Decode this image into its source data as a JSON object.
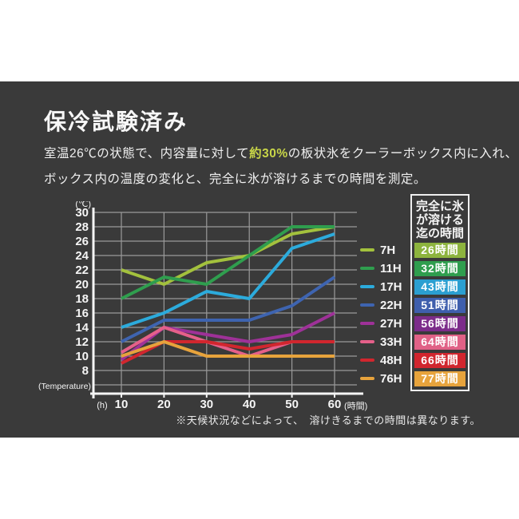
{
  "header": {
    "title": "保冷試験済み",
    "line1_pre": "室温26℃の状態で、内容量に対して",
    "line1_highlight": "約30%",
    "line1_post": "の板状氷をクーラーボックス内に入れ、",
    "line2": "ボックス内の温度の変化と、完全に氷が溶けるまでの時間を測定。",
    "highlight_color": "#c9d648"
  },
  "chart_data": {
    "type": "line",
    "title": "",
    "x": [
      10,
      20,
      30,
      40,
      50,
      60
    ],
    "x_axis_unit": "(時間)",
    "x_origin_unit": "(h)",
    "y_axis_unit": "(℃)",
    "y_axis_name": "(Temperature)",
    "y_ticks": [
      30,
      28,
      26,
      24,
      22,
      20,
      18,
      16,
      14,
      12,
      10,
      8
    ],
    "ylim": [
      6,
      30
    ],
    "grid": true,
    "legend_position": "right",
    "legend_header": "完全に氷\nが溶ける\n迄の時間",
    "series": [
      {
        "name": "7H",
        "color": "#a3c13d",
        "values": [
          22,
          20,
          23,
          24,
          27,
          28
        ],
        "melt_time": "26時間",
        "badge_color": "#8db43e"
      },
      {
        "name": "11H",
        "color": "#2f9e4e",
        "values": [
          18,
          21,
          20,
          24,
          28,
          28
        ],
        "melt_time": "32時間",
        "badge_color": "#2f9e4e"
      },
      {
        "name": "17H",
        "color": "#2cabdc",
        "values": [
          14,
          16,
          19,
          18,
          25,
          27
        ],
        "melt_time": "43時間",
        "badge_color": "#2b9fd1"
      },
      {
        "name": "22H",
        "color": "#3e64b0",
        "values": [
          12,
          15,
          15,
          15,
          17,
          21
        ],
        "melt_time": "51時間",
        "badge_color": "#3f5fad"
      },
      {
        "name": "27H",
        "color": "#9e3198",
        "values": [
          9.5,
          14,
          13,
          12,
          13,
          16
        ],
        "melt_time": "56時間",
        "badge_color": "#7c2c8a"
      },
      {
        "name": "33H",
        "color": "#e5608a",
        "values": [
          10.5,
          14,
          12,
          10,
          12,
          12
        ],
        "melt_time": "64時間",
        "badge_color": "#e06186"
      },
      {
        "name": "48H",
        "color": "#d1262e",
        "values": [
          9,
          12,
          12,
          11,
          12,
          12
        ],
        "melt_time": "66時間",
        "badge_color": "#d1262e"
      },
      {
        "name": "76H",
        "color": "#e7a33c",
        "values": [
          10,
          12,
          10,
          10,
          10,
          10
        ],
        "melt_time": "77時間",
        "badge_color": "#e7a33c"
      }
    ],
    "draw_order": [
      "27H",
      "33H",
      "48H",
      "76H",
      "22H",
      "17H",
      "7H",
      "11H"
    ]
  },
  "footnote": "※天候状況などによって、　溶けきるまでの時間は異なります。"
}
